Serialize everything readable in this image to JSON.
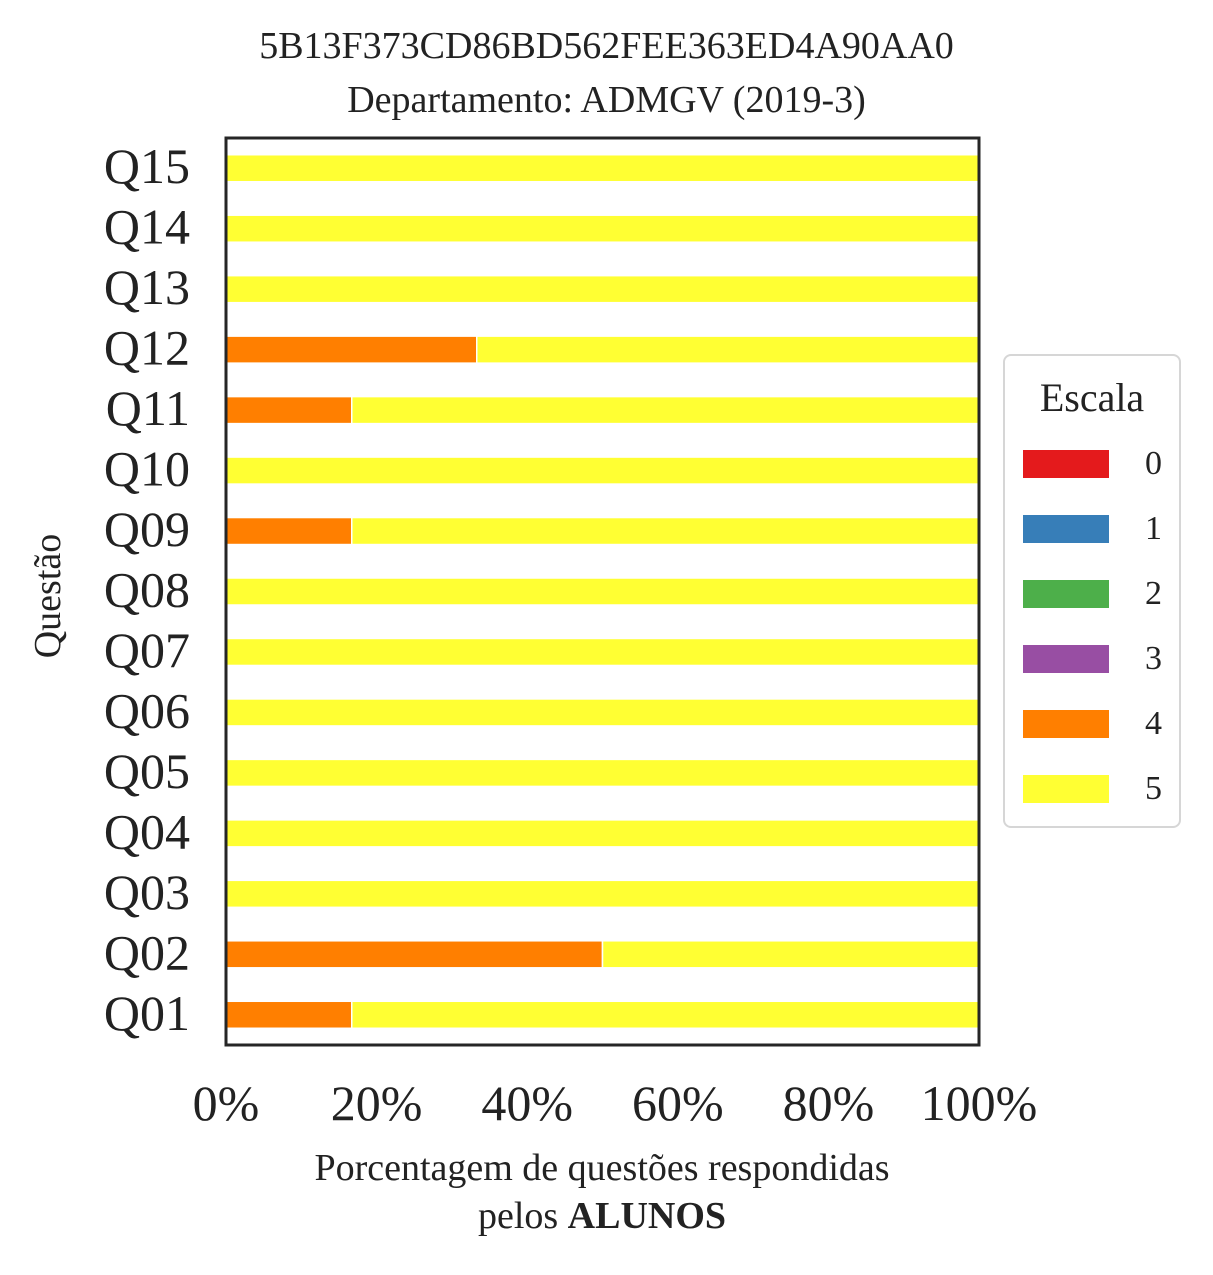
{
  "title_line1": "5B13F373CD86BD562FEE363ED4A90AA0",
  "title_line2": "Departamento: ADMGV (2019-3)",
  "xlabel_line1": "Porcentagem de questões respondidas",
  "xlabel_line2_prefix": "pelos ",
  "xlabel_line2_bold": "ALUNOS",
  "ylabel": "Questão",
  "legend_title": "Escala",
  "chart_data": {
    "type": "bar",
    "orientation": "horizontal",
    "stacked": true,
    "categories": [
      "Q01",
      "Q02",
      "Q03",
      "Q04",
      "Q05",
      "Q06",
      "Q07",
      "Q08",
      "Q09",
      "Q10",
      "Q11",
      "Q12",
      "Q13",
      "Q14",
      "Q15"
    ],
    "series": [
      {
        "name": "0",
        "color": "#e41a1c",
        "values": [
          0,
          0,
          0,
          0,
          0,
          0,
          0,
          0,
          0,
          0,
          0,
          0,
          0,
          0,
          0
        ]
      },
      {
        "name": "1",
        "color": "#377eb8",
        "values": [
          0,
          0,
          0,
          0,
          0,
          0,
          0,
          0,
          0,
          0,
          0,
          0,
          0,
          0,
          0
        ]
      },
      {
        "name": "2",
        "color": "#4daf4a",
        "values": [
          0,
          0,
          0,
          0,
          0,
          0,
          0,
          0,
          0,
          0,
          0,
          0,
          0,
          0,
          0
        ]
      },
      {
        "name": "3",
        "color": "#984ea3",
        "values": [
          0,
          0,
          0,
          0,
          0,
          0,
          0,
          0,
          0,
          0,
          0,
          0,
          0,
          0,
          0
        ]
      },
      {
        "name": "4",
        "color": "#ff7f00",
        "values": [
          16.7,
          50,
          0,
          0,
          0,
          0,
          0,
          0,
          16.7,
          0,
          16.7,
          33.3,
          0,
          0,
          0
        ]
      },
      {
        "name": "5",
        "color": "#ffff33",
        "values": [
          83.3,
          50,
          100,
          100,
          100,
          100,
          100,
          100,
          83.3,
          100,
          83.3,
          66.7,
          100,
          100,
          100
        ]
      }
    ],
    "xlim": [
      0,
      100
    ],
    "xticks": [
      "0%",
      "20%",
      "40%",
      "60%",
      "80%",
      "100%"
    ],
    "xtick_values": [
      0,
      20,
      40,
      60,
      80,
      100
    ],
    "grid": false,
    "legend_position": "center-right"
  }
}
